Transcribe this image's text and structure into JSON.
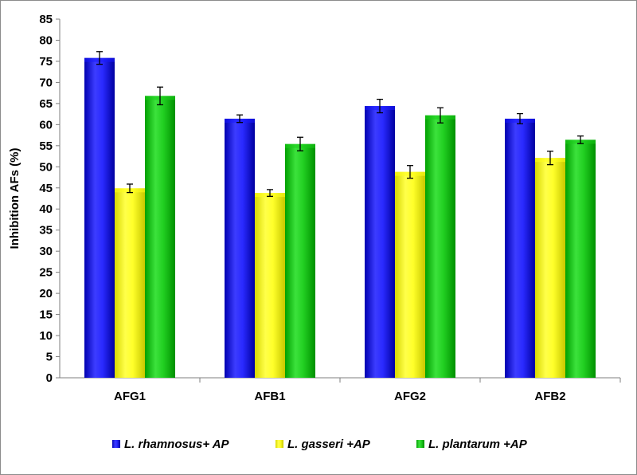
{
  "chart_data": {
    "type": "bar",
    "categories": [
      "AFG1",
      "AFB1",
      "AFG2",
      "AFB2"
    ],
    "ylabel": "Inhibition AFs (%)",
    "xlabel": "",
    "ylim": [
      0,
      85
    ],
    "yticks": [
      0,
      5,
      10,
      15,
      20,
      25,
      30,
      35,
      40,
      45,
      50,
      55,
      60,
      65,
      70,
      75,
      80,
      85
    ],
    "grid": false,
    "legend_position": "bottom",
    "series": [
      {
        "name": "L. rhamnosus+ AP",
        "color": "#1a1aff",
        "values": [
          75.8,
          61.4,
          64.4,
          61.4
        ],
        "errors": [
          1.5,
          0.9,
          1.6,
          1.2
        ]
      },
      {
        "name": "L. gasseri +AP",
        "color": "#ffff1a",
        "values": [
          44.9,
          43.8,
          48.8,
          52.1
        ],
        "errors": [
          1.0,
          0.8,
          1.5,
          1.6
        ]
      },
      {
        "name": "L. plantarum +AP",
        "color": "#1acc1a",
        "values": [
          66.8,
          55.4,
          62.2,
          56.4
        ],
        "errors": [
          2.1,
          1.6,
          1.8,
          0.9
        ]
      }
    ]
  }
}
